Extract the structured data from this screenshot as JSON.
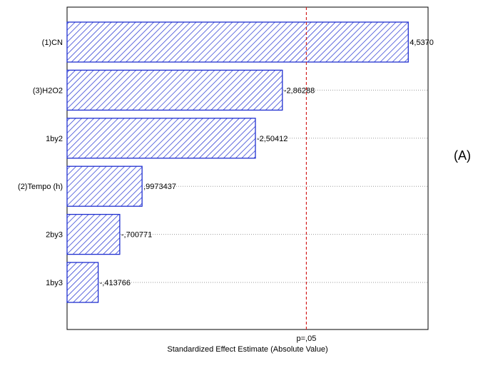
{
  "chart_data": {
    "type": "bar",
    "orientation": "horizontal",
    "categories": [
      "(1)CN",
      "(3)H2O2",
      "1by2",
      "(2)Tempo (h)",
      "2by3",
      "1by3"
    ],
    "values": [
      4.537,
      2.86288,
      2.50412,
      0.9973437,
      0.700771,
      0.413766
    ],
    "data_labels": [
      "4,5370",
      "-2,86288",
      "-2,50412",
      ",9973437",
      "-,700771",
      "-,413766"
    ],
    "reference_line": {
      "value": 3.182,
      "label": "p=,05",
      "color": "#d32020"
    },
    "xlabel": "Standardized Effect Estimate (Absolute Value)",
    "xlim": [
      0,
      4.8
    ],
    "grid": "horizontal-dotted",
    "bar_fill": "#ffffff",
    "bar_color": "#1f2fd0"
  },
  "panel_label": "(A)"
}
